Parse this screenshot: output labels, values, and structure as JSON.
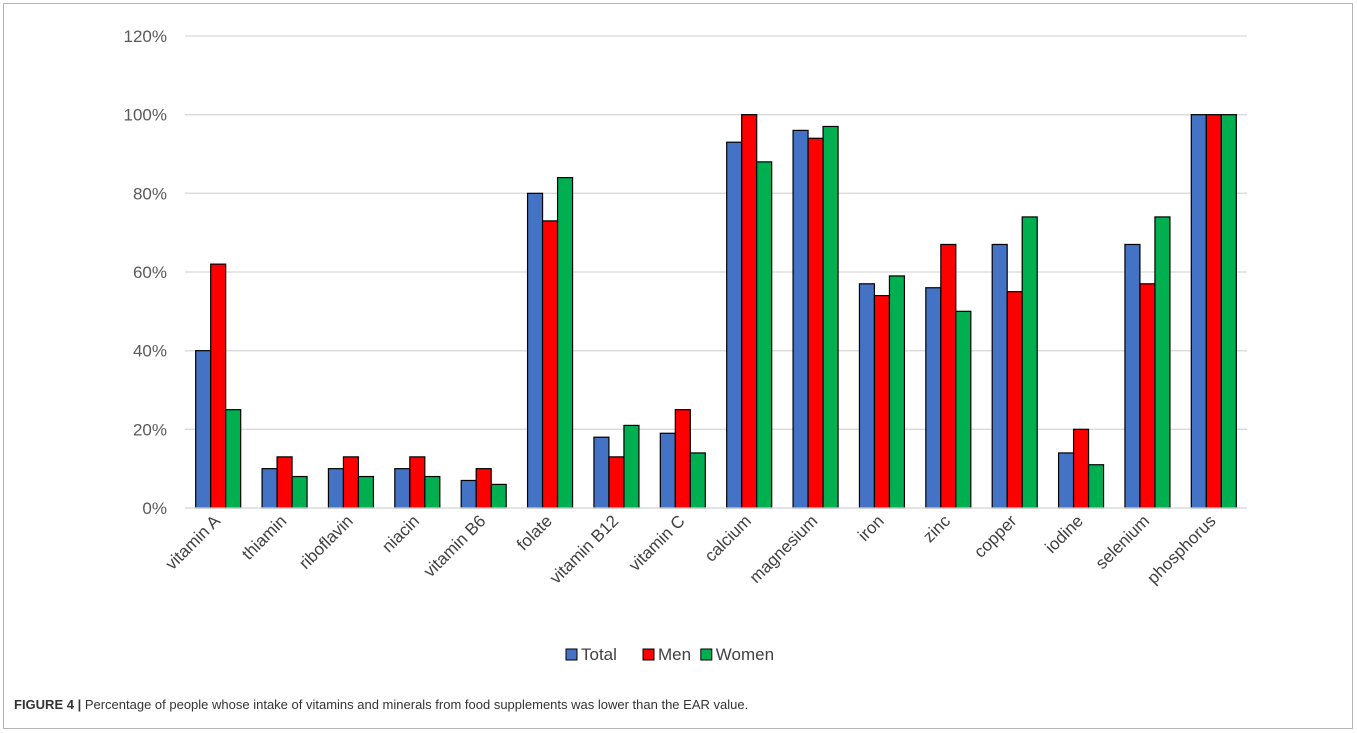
{
  "caption": {
    "label": "FIGURE 4 |",
    "text": " Percentage of people whose intake of vitamins and minerals from food supplements was lower than the EAR value."
  },
  "chart_data": {
    "type": "bar",
    "title": "",
    "xlabel": "",
    "ylabel": "",
    "ylim": [
      0,
      120
    ],
    "yticks": [
      "0%",
      "20%",
      "40%",
      "60%",
      "80%",
      "100%",
      "120%"
    ],
    "grid": true,
    "legend_position": "bottom",
    "categories": [
      "vitamin A",
      "thiamin",
      "riboflavin",
      "niacin",
      "vitamin B6",
      "folate",
      "vitamin B12",
      "vitamin C",
      "calcium",
      "magnesium",
      "iron",
      "zinc",
      "copper",
      "iodine",
      "selenium",
      "phosphorus"
    ],
    "series": [
      {
        "name": "Total",
        "color": "#4472c4",
        "values": [
          40,
          10,
          10,
          10,
          7,
          80,
          18,
          19,
          93,
          96,
          57,
          56,
          67,
          14,
          67,
          100
        ]
      },
      {
        "name": "Men",
        "color": "#ff0000",
        "values": [
          62,
          13,
          13,
          13,
          10,
          73,
          13,
          25,
          100,
          94,
          54,
          67,
          55,
          20,
          57,
          100
        ]
      },
      {
        "name": "Women",
        "color": "#00b050",
        "values": [
          25,
          8,
          8,
          8,
          6,
          84,
          21,
          14,
          88,
          97,
          59,
          50,
          74,
          11,
          74,
          100
        ]
      }
    ]
  }
}
